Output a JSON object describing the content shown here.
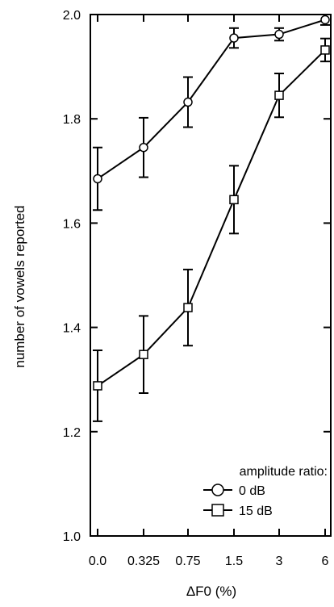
{
  "chart_data": {
    "type": "line",
    "xlabel": "ΔF0 (%)",
    "ylabel": "number of vowels reported",
    "categories": [
      "0.0",
      "0.325",
      "0.75",
      "1.5",
      "3",
      "6"
    ],
    "ylim": [
      1.0,
      2.0
    ],
    "yticks": [
      "1.0",
      "1.2",
      "1.4",
      "1.6",
      "1.8",
      "2.0"
    ],
    "legend": {
      "title": "amplitude ratio:",
      "placement": "bottom-right"
    },
    "series": [
      {
        "name": "0 dB",
        "marker": "circle",
        "values": [
          1.685,
          1.745,
          1.832,
          1.955,
          1.962,
          1.99
        ],
        "errors": [
          0.06,
          0.057,
          0.048,
          0.019,
          0.012,
          0.01
        ]
      },
      {
        "name": "15 dB",
        "marker": "square",
        "values": [
          1.288,
          1.348,
          1.438,
          1.645,
          1.845,
          1.932
        ],
        "errors": [
          0.068,
          0.074,
          0.073,
          0.065,
          0.042,
          0.022
        ]
      }
    ]
  }
}
